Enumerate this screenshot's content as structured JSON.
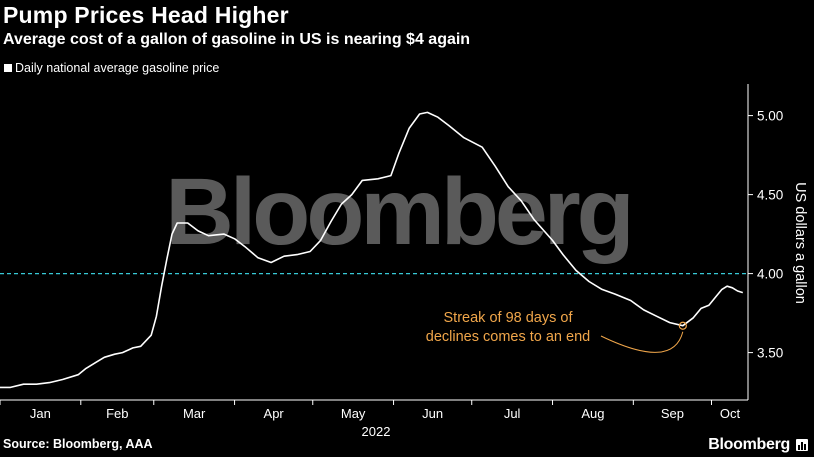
{
  "header": {
    "title": "Pump Prices Head Higher",
    "subtitle": "Average cost of a gallon of gasoline in US is nearing $4 again"
  },
  "footer": {
    "source": "Source: Bloomberg, AAA",
    "brand": "Bloomberg"
  },
  "watermark": "Bloomberg",
  "icons": {
    "brand_icon": "bar-chart-icon"
  },
  "colors": {
    "background": "#000000",
    "line": "#ffffff",
    "reference_line": "#37c9d6",
    "annotation": "#f0a64a",
    "watermark": "#5a5a5a"
  },
  "chart_data": {
    "type": "line",
    "title": "Pump Prices Head Higher",
    "subtitle": "Average cost of a gallon of gasoline in US is nearing $4 again",
    "year_label": "2022",
    "xlabel": "",
    "ylabel": "US dollars a gallon",
    "x_tick_labels": [
      "Jan",
      "Feb",
      "Mar",
      "Apr",
      "May",
      "Jun",
      "Jul",
      "Aug",
      "Sep",
      "Oct"
    ],
    "y_ticks": [
      3.5,
      4.0,
      4.5,
      5.0
    ],
    "y_tick_labels": [
      "3.50",
      "4.00",
      "4.50",
      "5.00"
    ],
    "ylim": [
      3.2,
      5.2
    ],
    "xlim": [
      "2022-01-01",
      "2022-10-15"
    ],
    "y_axis_side": "right",
    "grid": false,
    "legend_position": "top-left",
    "reference_line": {
      "y": 4.0,
      "style": "dashed"
    },
    "annotations": [
      {
        "text_lines": [
          "Streak of 98 days of",
          "declines comes to an end"
        ],
        "point": {
          "x": "2022-09-20",
          "y": 3.67
        }
      }
    ],
    "series": [
      {
        "name": "Daily national average gasoline price",
        "points": [
          [
            "2022-01-01",
            3.28
          ],
          [
            "2022-01-05",
            3.28
          ],
          [
            "2022-01-10",
            3.3
          ],
          [
            "2022-01-15",
            3.3
          ],
          [
            "2022-01-20",
            3.31
          ],
          [
            "2022-01-25",
            3.33
          ],
          [
            "2022-01-31",
            3.36
          ],
          [
            "2022-02-03",
            3.4
          ],
          [
            "2022-02-07",
            3.44
          ],
          [
            "2022-02-10",
            3.47
          ],
          [
            "2022-02-14",
            3.49
          ],
          [
            "2022-02-17",
            3.5
          ],
          [
            "2022-02-21",
            3.53
          ],
          [
            "2022-02-24",
            3.54
          ],
          [
            "2022-02-28",
            3.61
          ],
          [
            "2022-03-02",
            3.73
          ],
          [
            "2022-03-04",
            3.92
          ],
          [
            "2022-03-06",
            4.09
          ],
          [
            "2022-03-08",
            4.25
          ],
          [
            "2022-03-10",
            4.32
          ],
          [
            "2022-03-14",
            4.32
          ],
          [
            "2022-03-18",
            4.27
          ],
          [
            "2022-03-22",
            4.24
          ],
          [
            "2022-03-28",
            4.25
          ],
          [
            "2022-04-01",
            4.22
          ],
          [
            "2022-04-05",
            4.17
          ],
          [
            "2022-04-10",
            4.1
          ],
          [
            "2022-04-15",
            4.07
          ],
          [
            "2022-04-20",
            4.11
          ],
          [
            "2022-04-25",
            4.12
          ],
          [
            "2022-04-30",
            4.14
          ],
          [
            "2022-05-04",
            4.21
          ],
          [
            "2022-05-08",
            4.33
          ],
          [
            "2022-05-12",
            4.44
          ],
          [
            "2022-05-16",
            4.5
          ],
          [
            "2022-05-20",
            4.59
          ],
          [
            "2022-05-26",
            4.6
          ],
          [
            "2022-05-31",
            4.62
          ],
          [
            "2022-06-03",
            4.76
          ],
          [
            "2022-06-07",
            4.92
          ],
          [
            "2022-06-11",
            5.01
          ],
          [
            "2022-06-14",
            5.02
          ],
          [
            "2022-06-18",
            4.99
          ],
          [
            "2022-06-22",
            4.94
          ],
          [
            "2022-06-28",
            4.86
          ],
          [
            "2022-07-05",
            4.8
          ],
          [
            "2022-07-10",
            4.68
          ],
          [
            "2022-07-15",
            4.55
          ],
          [
            "2022-07-20",
            4.46
          ],
          [
            "2022-07-25",
            4.34
          ],
          [
            "2022-08-01",
            4.21
          ],
          [
            "2022-08-05",
            4.12
          ],
          [
            "2022-08-10",
            4.02
          ],
          [
            "2022-08-15",
            3.95
          ],
          [
            "2022-08-20",
            3.9
          ],
          [
            "2022-08-25",
            3.87
          ],
          [
            "2022-08-31",
            3.83
          ],
          [
            "2022-09-05",
            3.77
          ],
          [
            "2022-09-10",
            3.73
          ],
          [
            "2022-09-15",
            3.69
          ],
          [
            "2022-09-20",
            3.67
          ],
          [
            "2022-09-24",
            3.72
          ],
          [
            "2022-09-27",
            3.78
          ],
          [
            "2022-09-30",
            3.8
          ],
          [
            "2022-10-02",
            3.84
          ],
          [
            "2022-10-05",
            3.9
          ],
          [
            "2022-10-07",
            3.92
          ],
          [
            "2022-10-09",
            3.91
          ],
          [
            "2022-10-11",
            3.89
          ],
          [
            "2022-10-13",
            3.88
          ]
        ]
      }
    ]
  }
}
